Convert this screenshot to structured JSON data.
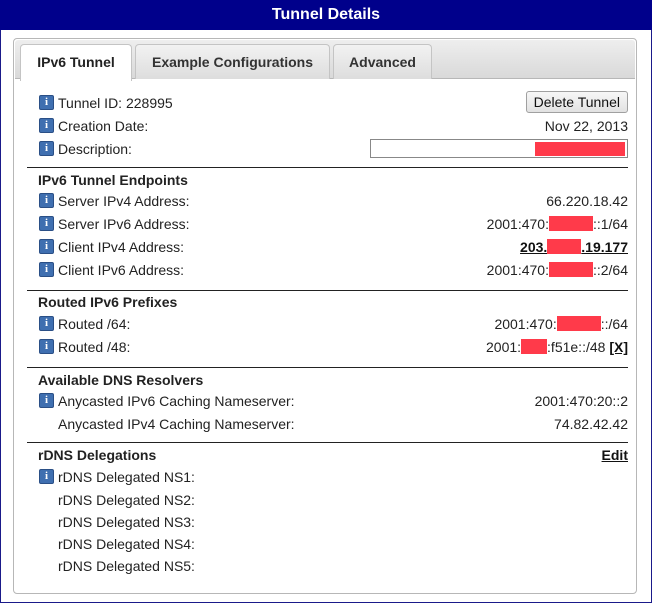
{
  "window": {
    "title": "Tunnel Details"
  },
  "tabs": [
    {
      "label": "IPv6 Tunnel",
      "active": true
    },
    {
      "label": "Example Configurations",
      "active": false
    },
    {
      "label": "Advanced",
      "active": false
    }
  ],
  "tunnel": {
    "id_label": "Tunnel ID: 228995",
    "delete_button": "Delete Tunnel",
    "creation_label": "Creation Date:",
    "creation_value": "Nov 22, 2013",
    "description_label": "Description:"
  },
  "endpoints": {
    "heading": "IPv6 Tunnel Endpoints",
    "server_ipv4_label": "Server IPv4 Address:",
    "server_ipv4_value": "66.220.18.42",
    "server_ipv6_label": "Server IPv6 Address:",
    "server_ipv6_prefix": "2001:470:",
    "server_ipv6_suffix": "::1/64",
    "client_ipv4_label": "Client IPv4 Address:",
    "client_ipv4_prefix": "203.",
    "client_ipv4_suffix": ".19.177",
    "client_ipv6_label": "Client IPv6 Address:",
    "client_ipv6_prefix": "2001:470:",
    "client_ipv6_suffix": "::2/64"
  },
  "routed": {
    "heading": "Routed IPv6 Prefixes",
    "r64_label": "Routed /64:",
    "r64_prefix": "2001:470:",
    "r64_suffix": "::/64",
    "r48_label": "Routed /48:",
    "r48_prefix": "2001:",
    "r48_suffix": ":f51e::/48",
    "r48_remove": "[X]"
  },
  "dns": {
    "heading": "Available DNS Resolvers",
    "ipv6_label": "Anycasted IPv6 Caching Nameserver:",
    "ipv6_value": "2001:470:20::2",
    "ipv4_label": "Anycasted IPv4 Caching Nameserver:",
    "ipv4_value": "74.82.42.42"
  },
  "rdns": {
    "heading": "rDNS Delegations",
    "edit_label": "Edit",
    "ns": [
      "rDNS Delegated NS1:",
      "rDNS Delegated NS2:",
      "rDNS Delegated NS3:",
      "rDNS Delegated NS4:",
      "rDNS Delegated NS5:"
    ]
  },
  "colors": {
    "title_bg": "#00008b",
    "redaction": "#ff3a4a",
    "info_icon": "#3f6fb0"
  }
}
